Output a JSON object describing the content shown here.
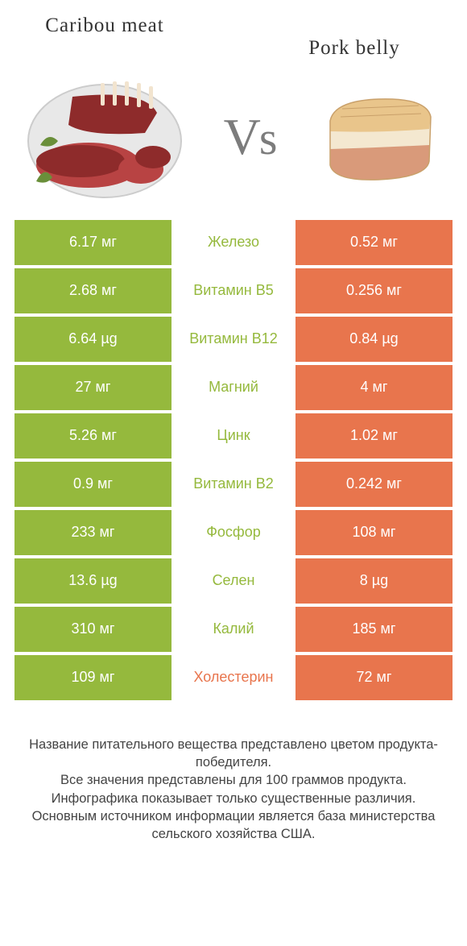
{
  "titles": {
    "left": "Caribou meat",
    "right": "Pork belly",
    "vs_v": "V",
    "vs_s": "s"
  },
  "colors": {
    "left_bg": "#95b93d",
    "right_bg": "#e8754d",
    "mid_left_text": "#95b93d",
    "mid_right_text": "#e8754d",
    "row_gap": "#ffffff"
  },
  "rows": [
    {
      "left": "6.17 мг",
      "mid": "Железо",
      "right": "0.52 мг",
      "winner": "left"
    },
    {
      "left": "2.68 мг",
      "mid": "Витамин B5",
      "right": "0.256 мг",
      "winner": "left"
    },
    {
      "left": "6.64 µg",
      "mid": "Витамин B12",
      "right": "0.84 µg",
      "winner": "left"
    },
    {
      "left": "27 мг",
      "mid": "Магний",
      "right": "4 мг",
      "winner": "left"
    },
    {
      "left": "5.26 мг",
      "mid": "Цинк",
      "right": "1.02 мг",
      "winner": "left"
    },
    {
      "left": "0.9 мг",
      "mid": "Витамин B2",
      "right": "0.242 мг",
      "winner": "left"
    },
    {
      "left": "233 мг",
      "mid": "Фосфор",
      "right": "108 мг",
      "winner": "left"
    },
    {
      "left": "13.6 µg",
      "mid": "Селен",
      "right": "8 µg",
      "winner": "left"
    },
    {
      "left": "310 мг",
      "mid": "Калий",
      "right": "185 мг",
      "winner": "left"
    },
    {
      "left": "109 мг",
      "mid": "Холестерин",
      "right": "72 мг",
      "winner": "right"
    }
  ],
  "footer_lines": [
    "Название питательного вещества представлено цветом продукта-победителя.",
    "Все значения представлены для 100 граммов продукта.",
    "Инфографика показывает только существенные различия.",
    "Основным источником информации является база министерства сельского хозяйства США."
  ],
  "svg": {
    "caribou": {
      "plate_fill": "#e8e8e8",
      "plate_stroke": "#cccccc",
      "meat_dark": "#8e2b2b",
      "meat_light": "#b84343",
      "bone": "#f2e4cf",
      "herb": "#6a8f3a"
    },
    "pork": {
      "skin": "#e9c58b",
      "fat": "#f4e8d0",
      "meat": "#d99a7a",
      "line": "#c9a06a"
    }
  }
}
